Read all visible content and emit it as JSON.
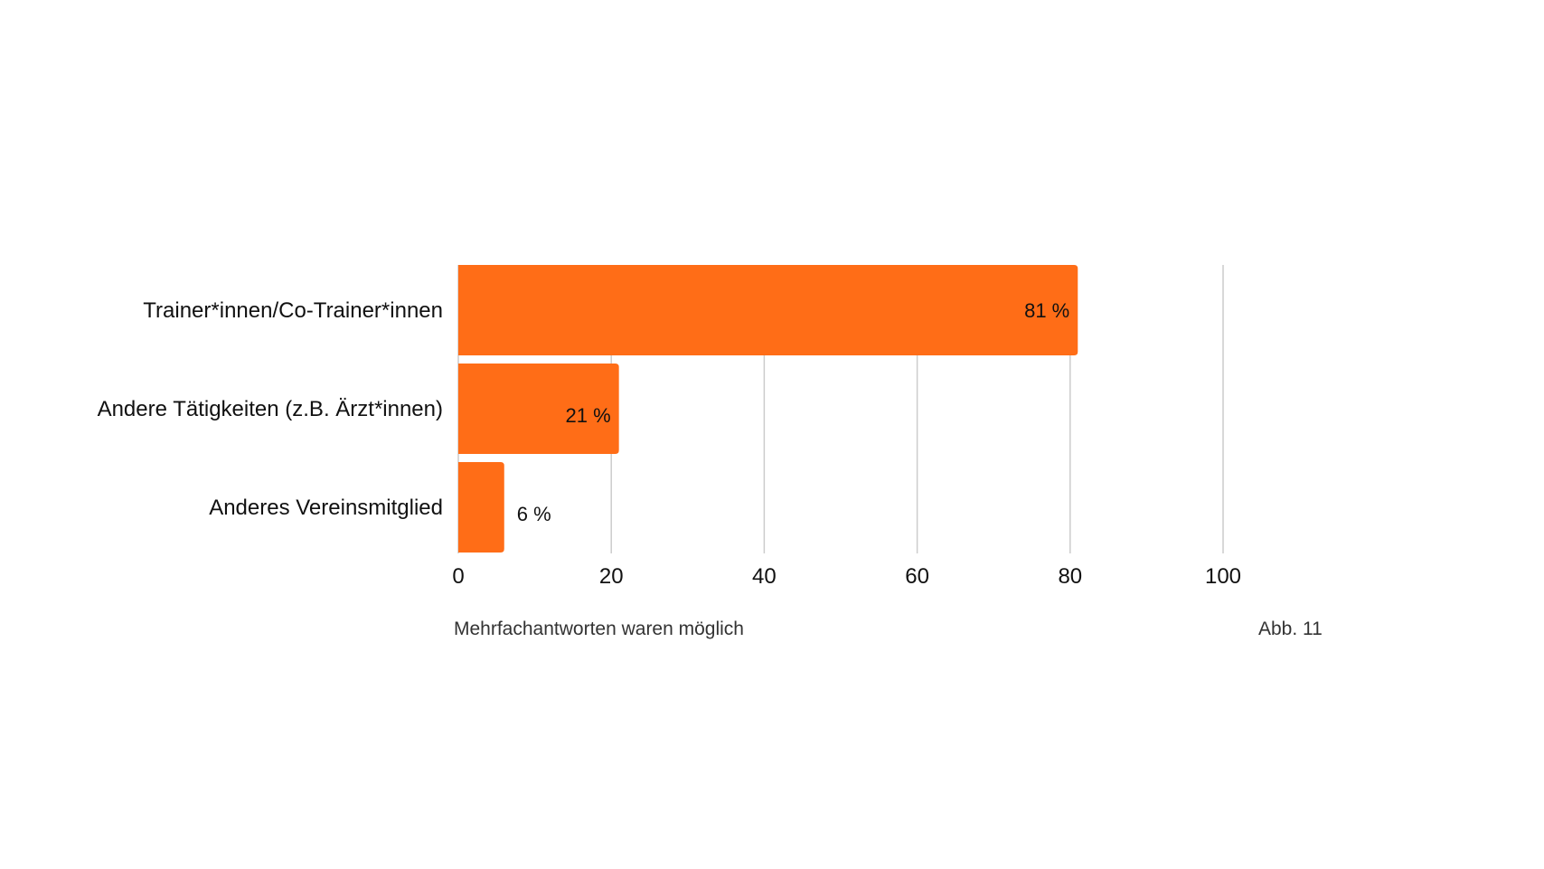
{
  "chart_data": {
    "type": "bar",
    "orientation": "horizontal",
    "categories": [
      "Trainer*innen/Co-Trainer*innen",
      "Andere Tätigkeiten (z.B. Ärzt*innen)",
      "Anderes Vereinsmitglied"
    ],
    "values": [
      81,
      21,
      6
    ],
    "value_labels": [
      "81 %",
      "21 %",
      "6 %"
    ],
    "xlim": [
      0,
      100
    ],
    "xticks": [
      0,
      20,
      40,
      60,
      80,
      100
    ],
    "xtick_labels": [
      "0",
      "20",
      "40",
      "60",
      "80",
      "100"
    ],
    "grid": "vertical",
    "legend": "none",
    "title": "",
    "xlabel": "",
    "ylabel": "",
    "colors": {
      "bar": "#ff6d17",
      "grid": "#cccccc",
      "text": "#111111"
    }
  },
  "footer": {
    "note": "Mehrfachantworten waren möglich",
    "figure_ref": "Abb. 11"
  }
}
